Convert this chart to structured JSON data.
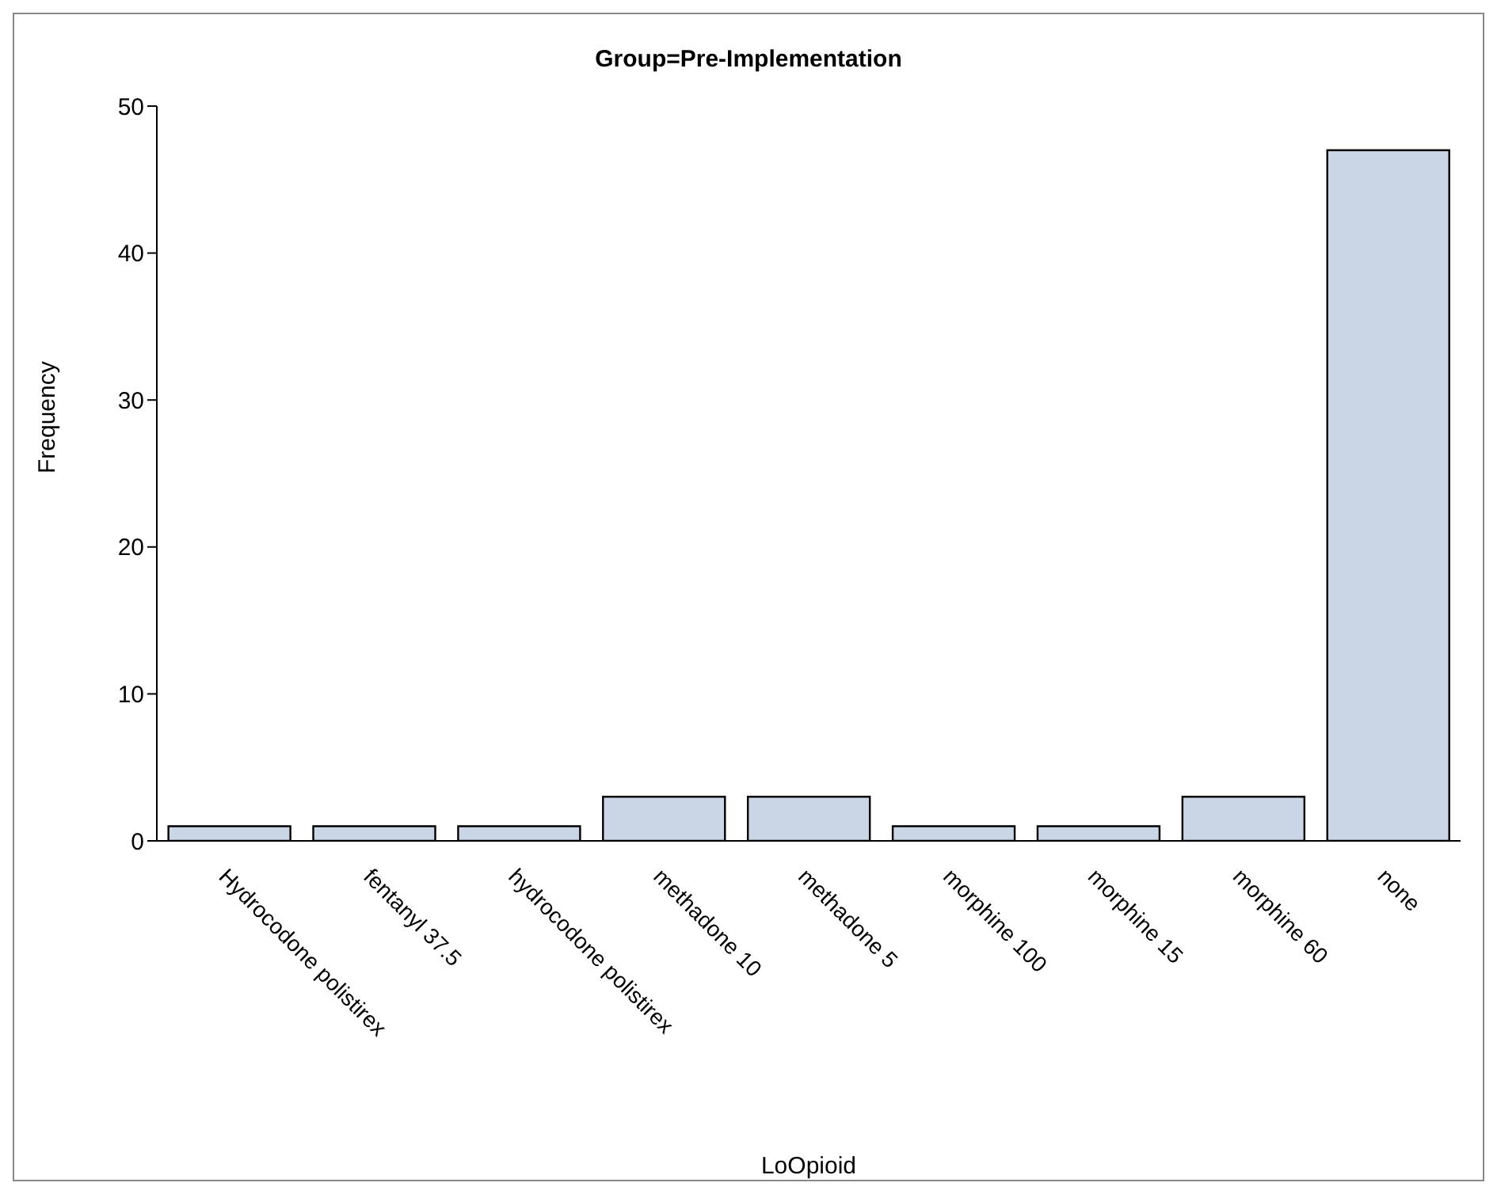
{
  "chart_data": {
    "type": "bar",
    "title": "Group=Pre-Implementation",
    "xlabel": "LoOpioid",
    "ylabel": "Frequency",
    "categories": [
      "Hydrocodone polistirex",
      "fentanyl 37.5",
      "hydrocodone polistirex",
      "methadone 10",
      "methadone 5",
      "morphine 100",
      "morphine 15",
      "morphine 60",
      "none"
    ],
    "values": [
      1,
      1,
      1,
      3,
      3,
      1,
      1,
      3,
      47
    ],
    "color": "#cad5e5",
    "ylim": [
      0,
      50
    ],
    "yticks": [
      0,
      10,
      20,
      30,
      40,
      50
    ]
  }
}
